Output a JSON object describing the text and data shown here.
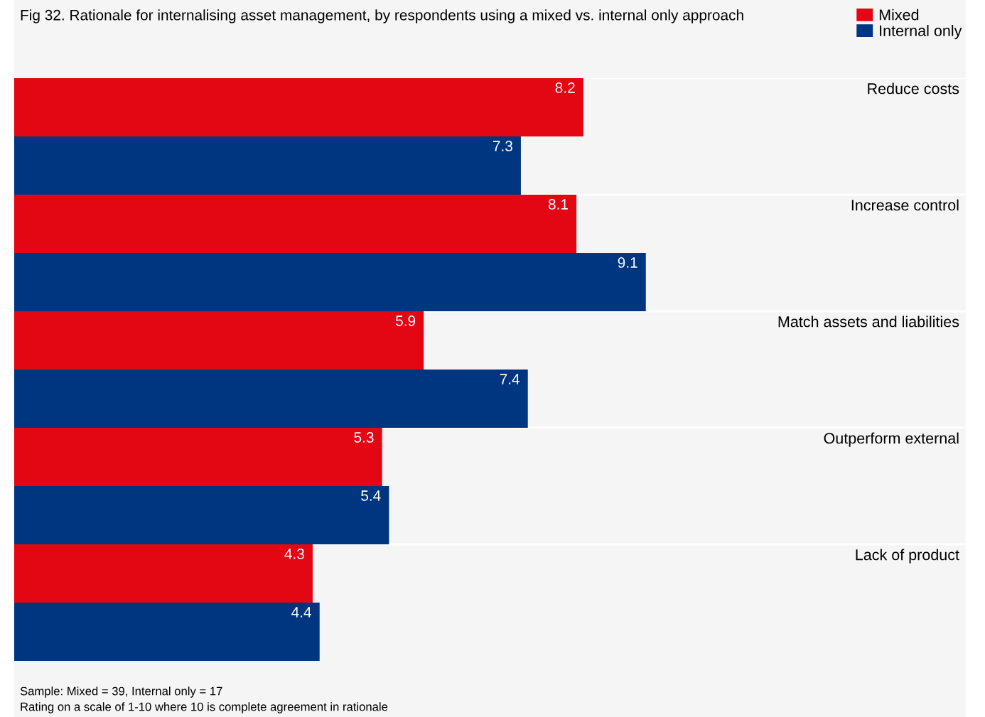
{
  "chart_data": {
    "type": "bar",
    "orientation": "horizontal",
    "title": "Fig 32. Rationale for internalising asset management, by respondents using a mixed vs. internal only approach",
    "categories": [
      "Reduce costs",
      "Increase control",
      "Match assets and liabilities",
      "Outperform external",
      "Lack of product"
    ],
    "series": [
      {
        "name": "Mixed",
        "color": "#e30613",
        "values": [
          8.2,
          8.1,
          5.9,
          5.3,
          4.3
        ]
      },
      {
        "name": "Internal only",
        "color": "#003580",
        "values": [
          7.3,
          9.1,
          7.4,
          5.4,
          4.4
        ]
      }
    ],
    "xlim": [
      0,
      13.7
    ],
    "tick_labels": false,
    "data_labels": true,
    "legend": "top right",
    "annotations": [
      "Sample: Mixed = 39, Internal only = 17",
      "Rating on a scale of 1-10 where 10 is complete agreement in rationale"
    ]
  }
}
